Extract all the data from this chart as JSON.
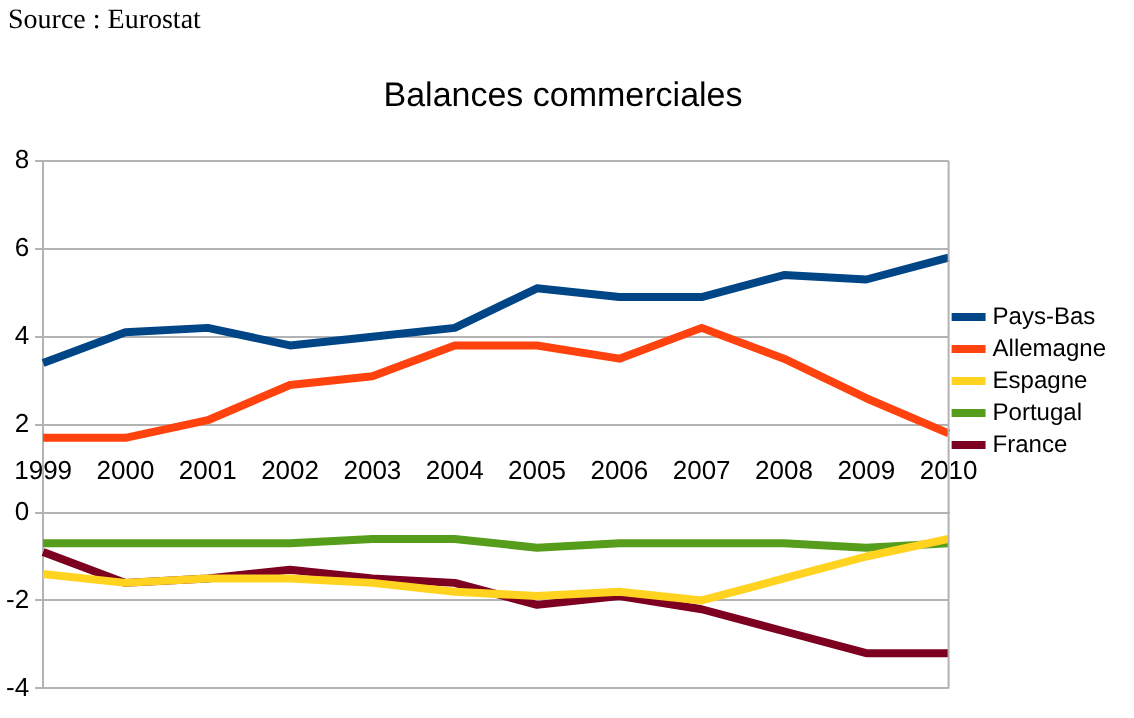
{
  "chart_data": {
    "type": "line",
    "title": "Balances commerciales",
    "annotations": [
      "Source : Eurostat"
    ],
    "categories": [
      "1999",
      "2000",
      "2001",
      "2002",
      "2003",
      "2004",
      "2005",
      "2006",
      "2007",
      "2008",
      "2009",
      "2010"
    ],
    "series": [
      {
        "name": "Pays-Bas",
        "color": "#004586",
        "values": [
          3.4,
          4.1,
          4.2,
          3.8,
          4.0,
          4.2,
          5.1,
          4.9,
          4.9,
          5.4,
          5.3,
          5.8
        ]
      },
      {
        "name": "Allemagne",
        "color": "#ff420e",
        "values": [
          1.7,
          1.7,
          2.1,
          2.9,
          3.1,
          3.8,
          3.8,
          3.5,
          4.2,
          3.5,
          2.6,
          1.8
        ]
      },
      {
        "name": "Espagne",
        "color": "#ffd320",
        "values": [
          -1.4,
          -1.6,
          -1.5,
          -1.5,
          -1.6,
          -1.8,
          -1.9,
          -1.8,
          -2.0,
          -1.5,
          -1.0,
          -0.6
        ]
      },
      {
        "name": "Portugal",
        "color": "#579d1c",
        "values": [
          -0.7,
          -0.7,
          -0.7,
          -0.7,
          -0.6,
          -0.6,
          -0.8,
          -0.7,
          -0.7,
          -0.7,
          -0.8,
          -0.7
        ]
      },
      {
        "name": "France",
        "color": "#7e0021",
        "values": [
          -0.9,
          -1.6,
          -1.5,
          -1.3,
          -1.5,
          -1.6,
          -2.1,
          -1.9,
          -2.2,
          -2.7,
          -3.2,
          -3.2
        ]
      }
    ],
    "ylim": [
      -4,
      8
    ],
    "yticks": [
      -4,
      -2,
      0,
      2,
      4,
      6,
      8
    ],
    "grid": "y",
    "legend": "right",
    "marker": "none",
    "line_style": "solid"
  }
}
